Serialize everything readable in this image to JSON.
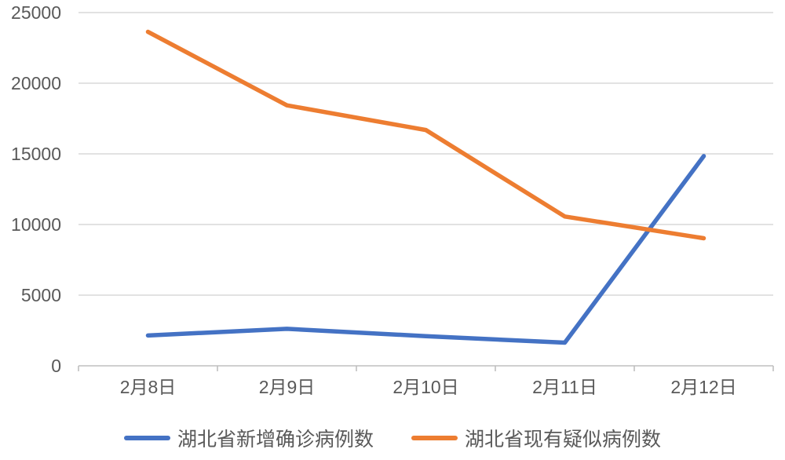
{
  "chart_data": {
    "type": "line",
    "title": "",
    "xlabel": "",
    "ylabel": "",
    "categories": [
      "2月8日",
      "2月9日",
      "2月10日",
      "2月11日",
      "2月12日"
    ],
    "series": [
      {
        "name": "湖北省新增确诊病例数",
        "color": "#4472C4",
        "values": [
          2147,
          2618,
          2097,
          1638,
          14840
        ]
      },
      {
        "name": "湖北省现有疑似病例数",
        "color": "#ED7D31",
        "values": [
          23638,
          18434,
          16687,
          10567,
          9028
        ]
      }
    ],
    "yticks": [
      0,
      5000,
      10000,
      15000,
      20000,
      25000
    ],
    "ylim": [
      0,
      25000
    ],
    "grid": true,
    "gridline_color": "#D9D9D9",
    "axis_line_color": "#BFBFBF",
    "text_color": "#595959",
    "legend_position": "bottom"
  }
}
